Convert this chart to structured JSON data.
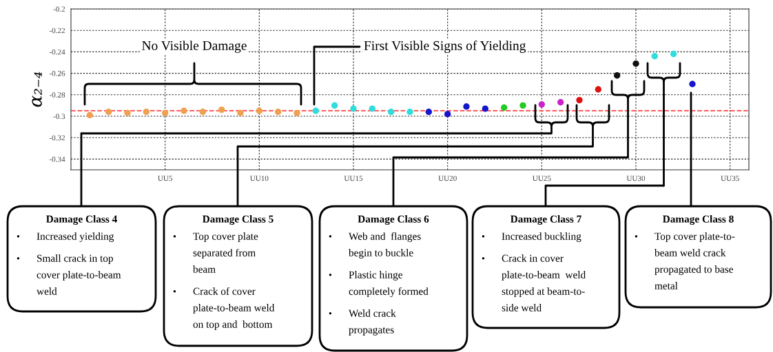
{
  "chart_data": {
    "type": "scatter",
    "ylabel": "α₂₋₄",
    "categories": [
      null,
      null,
      null,
      null,
      "UU5",
      null,
      null,
      null,
      null,
      "UU10",
      null,
      null,
      null,
      null,
      "UU15",
      null,
      null,
      null,
      null,
      "UU20",
      null,
      null,
      null,
      null,
      "UU25",
      null,
      null,
      null,
      null,
      "UU30",
      null,
      null,
      null,
      null,
      "UU35"
    ],
    "values": [
      -0.299,
      -0.296,
      -0.297,
      -0.296,
      -0.297,
      -0.295,
      -0.296,
      -0.294,
      -0.297,
      -0.295,
      -0.296,
      -0.297,
      -0.295,
      -0.29,
      -0.293,
      -0.293,
      -0.296,
      -0.296,
      -0.296,
      -0.298,
      -0.291,
      -0.293,
      -0.292,
      -0.29,
      -0.289,
      -0.287,
      -0.285,
      -0.275,
      -0.262,
      -0.251,
      -0.244,
      -0.242,
      -0.27,
      null,
      null
    ],
    "colors": [
      "#f0a050",
      "#f0a050",
      "#f0a050",
      "#f0a050",
      "#f0a050",
      "#f0a050",
      "#f0a050",
      "#f0a050",
      "#f0a050",
      "#f0a050",
      "#f0a050",
      "#f0a050",
      "#30dcdc",
      "#30dcdc",
      "#30dcdc",
      "#30dcdc",
      "#30dcdc",
      "#30dcdc",
      "#1515cc",
      "#1515cc",
      "#1515cc",
      "#1515cc",
      "#22cc22",
      "#22cc22",
      "#cc22cc",
      "#cc22cc",
      "#dd1111",
      "#dd1111",
      "#111111",
      "#111111",
      "#30dcdc",
      "#30dcdc",
      "#1515cc",
      null,
      null
    ],
    "marker": "circle",
    "ylim": [
      -0.35,
      -0.2
    ],
    "yticks": [
      -0.2,
      -0.22,
      -0.24,
      -0.26,
      -0.28,
      -0.3,
      -0.32,
      -0.34
    ],
    "grid": true,
    "ref_lines": [
      {
        "axis": "y",
        "value": -0.295,
        "color": "#ff4444",
        "line_style": "dashed"
      }
    ],
    "annotations": [
      "No Visible Damage",
      "First Visible Signs of Yielding",
      "Damage Class 4\n• Increased yielding\n• Small crack in top\ncover plate-to-beam\nweld",
      "Damage Class 5\n• Top cover plate\nseparated from\nbeam\n• Crack of cover\nplate-to-beam weld\non top and  bottom",
      "Damage Class 6\n• Web and  flanges\nbegin to buckle\n• Plastic hinge\ncompletely formed\n• Weld crack\npropagates",
      "Damage Class 7\n• Increased buckling\n• Crack in cover\nplate-to-beam  weld\nstopped at beam-to-\nside weld",
      "Damage Class 8\n• Top cover plate-to-\nbeam weld crack\npropagated to base\nmetal"
    ]
  }
}
